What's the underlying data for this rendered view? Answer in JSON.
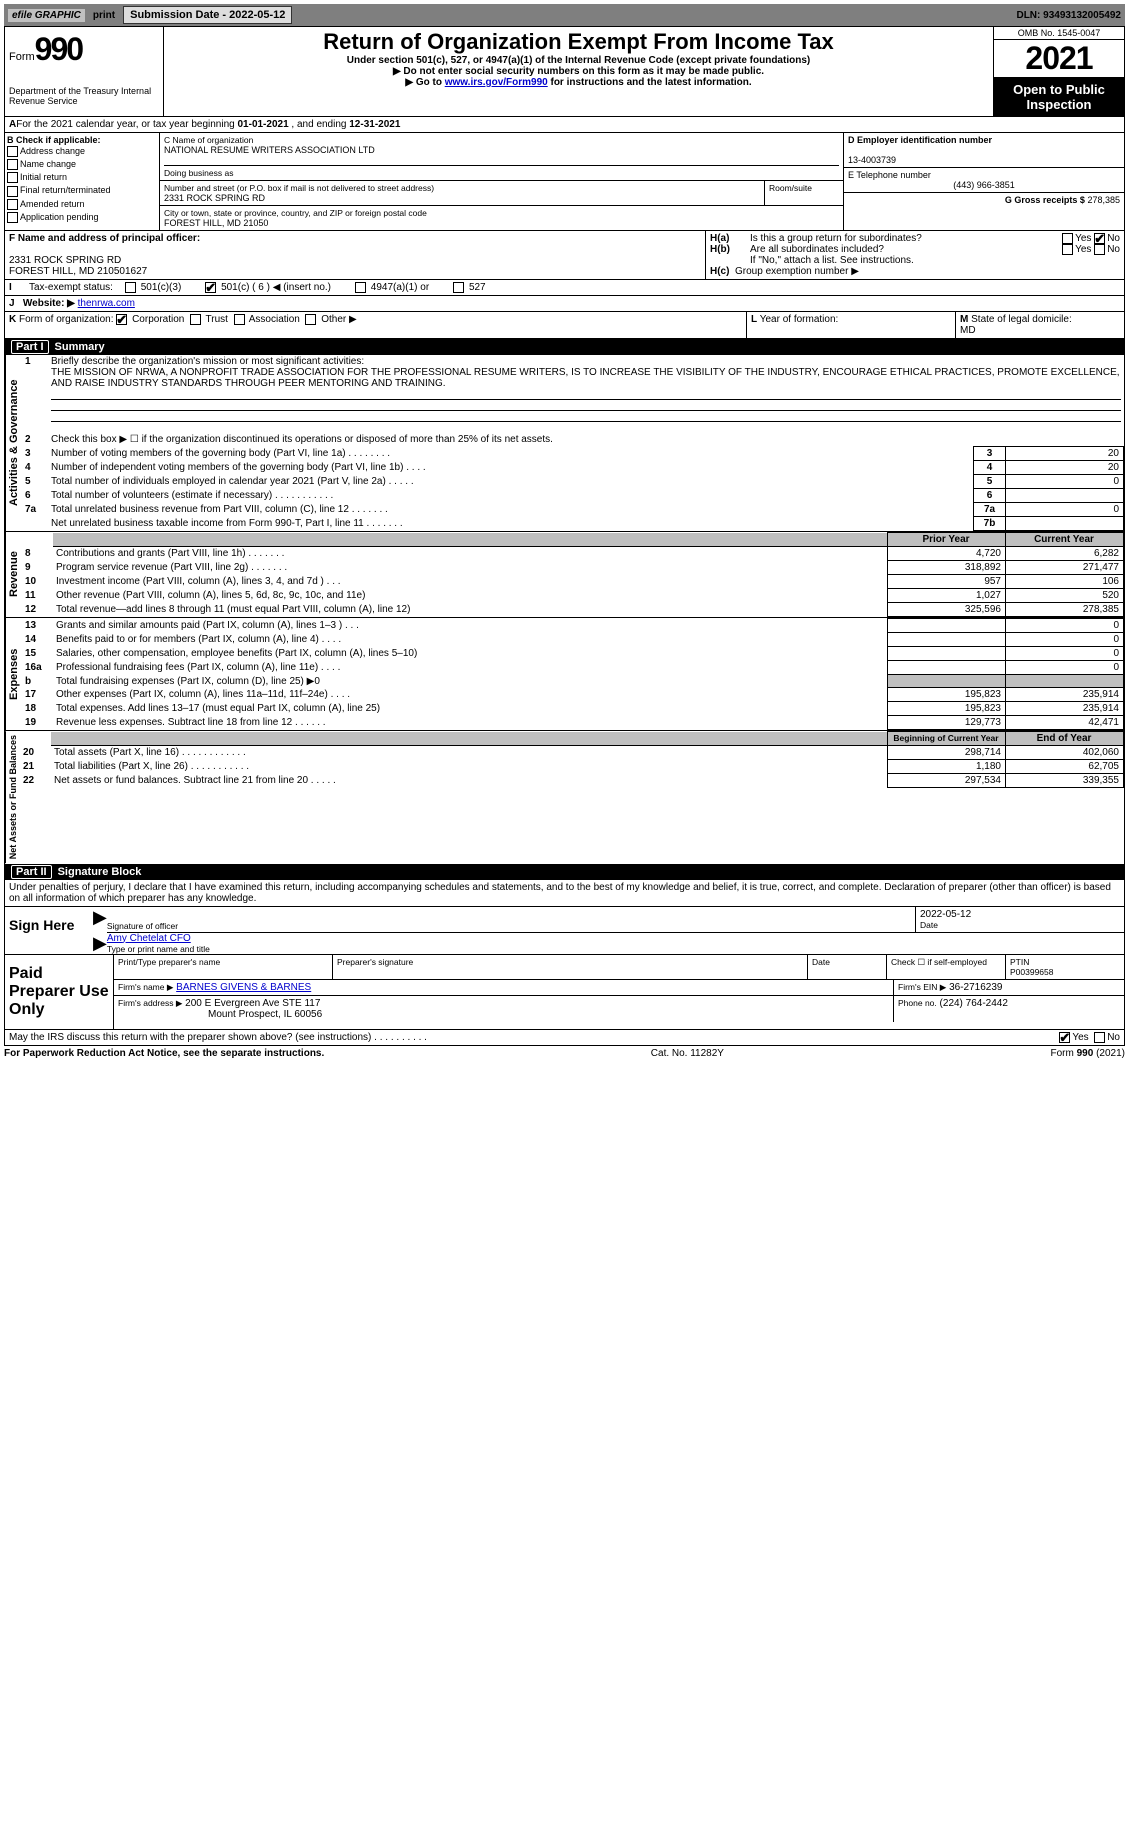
{
  "topbar": {
    "efile": "efile GRAPHIC",
    "print": "print",
    "submission": "Submission Date - 2022-05-12",
    "dln": "DLN: 93493132005492"
  },
  "header": {
    "form": "Form",
    "num": "990",
    "dept": "Department of the Treasury Internal Revenue Service",
    "title": "Return of Organization Exempt From Income Tax",
    "sub1": "Under section 501(c), 527, or 4947(a)(1) of the Internal Revenue Code (except private foundations)",
    "sub2": "▶ Do not enter social security numbers on this form as it may be made public.",
    "sub3_pre": "▶ Go to ",
    "sub3_link": "www.irs.gov/Form990",
    "sub3_post": " for instructions and the latest information.",
    "omb": "OMB No. 1545-0047",
    "year": "2021",
    "open": "Open to Public Inspection"
  },
  "a_line": {
    "pre": "For the 2021 calendar year, or tax year beginning ",
    "begin": "01-01-2021",
    "mid": " , and ending ",
    "end": "12-31-2021"
  },
  "b_check": {
    "header": "B Check if applicable:",
    "items": [
      "Address change",
      "Name change",
      "Initial return",
      "Final return/terminated",
      "Amended return",
      "Application pending"
    ]
  },
  "c": {
    "label_name": "C Name of organization",
    "name": "NATIONAL RESUME WRITERS ASSOCIATION LTD",
    "dba_label": "Doing business as",
    "street_label": "Number and street (or P.O. box if mail is not delivered to street address)",
    "room_label": "Room/suite",
    "street": "2331 ROCK SPRING RD",
    "city_label": "City or town, state or province, country, and ZIP or foreign postal code",
    "city": "FOREST HILL, MD  21050"
  },
  "d": {
    "label": "D Employer identification number",
    "val": "13-4003739"
  },
  "e": {
    "label": "E Telephone number",
    "val": "(443) 966-3851"
  },
  "g": {
    "label": "G Gross receipts $",
    "val": "278,385"
  },
  "f": {
    "label": "F  Name and address of principal officer:",
    "addr1": "2331 ROCK SPRING RD",
    "addr2": "FOREST HILL, MD  210501627"
  },
  "h": {
    "a_q": "Is this a group return for subordinates?",
    "b_q": "Are all subordinates included?",
    "note": "If \"No,\" attach a list. See instructions.",
    "c_label": "Group exemption number ▶",
    "yes": "Yes",
    "no": "No"
  },
  "i": {
    "label": "Tax-exempt status:",
    "c3": "501(c)(3)",
    "c": "501(c) ( 6 ) ◀ (insert no.)",
    "a1": "4947(a)(1) or",
    "s527": "527"
  },
  "j": {
    "label": "Website: ▶",
    "val": "thenrwa.com"
  },
  "k": {
    "label": "Form of organization:",
    "corp": "Corporation",
    "trust": "Trust",
    "assoc": "Association",
    "other": "Other ▶"
  },
  "l": {
    "label": "Year of formation:"
  },
  "m": {
    "label": "State of legal domicile:",
    "val": "MD"
  },
  "part1": {
    "header_num": "Part I",
    "header": "Summary",
    "q1_label": "Briefly describe the organization's mission or most significant activities:",
    "q1": "THE MISSION OF NRWA, A NONPROFIT TRADE ASSOCIATION FOR THE PROFESSIONAL RESUME WRITERS, IS TO INCREASE THE VISIBILITY OF THE INDUSTRY, ENCOURAGE ETHICAL PRACTICES, PROMOTE EXCELLENCE, AND RAISE INDUSTRY STANDARDS THROUGH PEER MENTORING AND TRAINING.",
    "q2": "Check this box ▶ ☐ if the organization discontinued its operations or disposed of more than 25% of its net assets.",
    "rows_gov": [
      {
        "n": "3",
        "t": "Number of voting members of the governing body (Part VI, line 1a)   .    .    .    .    .    .    .    .",
        "k": "3",
        "v": "20"
      },
      {
        "n": "4",
        "t": "Number of independent voting members of the governing body (Part VI, line 1b)    .    .    .    .",
        "k": "4",
        "v": "20"
      },
      {
        "n": "5",
        "t": "Total number of individuals employed in calendar year 2021 (Part V, line 2a)   .    .    .    .    .",
        "k": "5",
        "v": "0"
      },
      {
        "n": "6",
        "t": "Total number of volunteers (estimate if necessary)    .    .    .    .    .    .    .    .    .    .    .",
        "k": "6",
        "v": ""
      },
      {
        "n": "7a",
        "t": "Total unrelated business revenue from Part VIII, column (C), line 12    .    .    .    .    .    .    .",
        "k": "7a",
        "v": "0"
      },
      {
        "n": "",
        "t": "Net unrelated business taxable income from Form 990-T, Part I, line 11   .    .    .    .    .    .    .",
        "k": "7b",
        "v": ""
      }
    ],
    "col_prior": "Prior Year",
    "col_current": "Current Year",
    "rev": [
      {
        "n": "8",
        "t": "Contributions and grants (Part VIII, line 1h)   .    .    .    .    .    .    .",
        "p": "4,720",
        "c": "6,282"
      },
      {
        "n": "9",
        "t": "Program service revenue (Part VIII, line 2g)   .    .    .    .    .    .    .",
        "p": "318,892",
        "c": "271,477"
      },
      {
        "n": "10",
        "t": "Investment income (Part VIII, column (A), lines 3, 4, and 7d )   .    .    .",
        "p": "957",
        "c": "106"
      },
      {
        "n": "11",
        "t": "Other revenue (Part VIII, column (A), lines 5, 6d, 8c, 9c, 10c, and 11e)",
        "p": "1,027",
        "c": "520"
      },
      {
        "n": "12",
        "t": "Total revenue—add lines 8 through 11 (must equal Part VIII, column (A), line 12)",
        "p": "325,596",
        "c": "278,385"
      }
    ],
    "exp": [
      {
        "n": "13",
        "t": "Grants and similar amounts paid (Part IX, column (A), lines 1–3 )   .    .    .",
        "p": "",
        "c": "0"
      },
      {
        "n": "14",
        "t": "Benefits paid to or for members (Part IX, column (A), line 4)   .    .    .    .",
        "p": "",
        "c": "0"
      },
      {
        "n": "15",
        "t": "Salaries, other compensation, employee benefits (Part IX, column (A), lines 5–10)",
        "p": "",
        "c": "0"
      },
      {
        "n": "16a",
        "t": "Professional fundraising fees (Part IX, column (A), line 11e)   .    .    .    .",
        "p": "",
        "c": "0"
      },
      {
        "n": "b",
        "t": "Total fundraising expenses (Part IX, column (D), line 25) ▶0",
        "p": "GREY",
        "c": "GREY"
      },
      {
        "n": "17",
        "t": "Other expenses (Part IX, column (A), lines 11a–11d, 11f–24e)   .    .    .    .",
        "p": "195,823",
        "c": "235,914"
      },
      {
        "n": "18",
        "t": "Total expenses. Add lines 13–17 (must equal Part IX, column (A), line 25)",
        "p": "195,823",
        "c": "235,914"
      },
      {
        "n": "19",
        "t": "Revenue less expenses. Subtract line 18 from line 12  .    .    .    .    .    .",
        "p": "129,773",
        "c": "42,471"
      }
    ],
    "col_begin": "Beginning of Current Year",
    "col_end": "End of Year",
    "net": [
      {
        "n": "20",
        "t": "Total assets (Part X, line 16)   .    .    .    .    .    .    .    .    .    .    .    .",
        "p": "298,714",
        "c": "402,060"
      },
      {
        "n": "21",
        "t": "Total liabilities (Part X, line 26)   .    .    .    .    .    .    .    .    .    .    .",
        "p": "1,180",
        "c": "62,705"
      },
      {
        "n": "22",
        "t": "Net assets or fund balances. Subtract line 21 from line 20   .    .    .    .    .",
        "p": "297,534",
        "c": "339,355"
      }
    ],
    "vlab_gov": "Activities & Governance",
    "vlab_rev": "Revenue",
    "vlab_exp": "Expenses",
    "vlab_net": "Net Assets or Fund Balances"
  },
  "part2": {
    "header_num": "Part II",
    "header": "Signature Block",
    "decl": "Under penalties of perjury, I declare that I have examined this return, including accompanying schedules and statements, and to the best of my knowledge and belief, it is true, correct, and complete. Declaration of preparer (other than officer) is based on all information of which preparer has any knowledge.",
    "sign": "Sign Here",
    "sig_officer": "Signature of officer",
    "date": "Date",
    "sig_date": "2022-05-12",
    "officer_name": "Amy Chetelat CFO",
    "type_name": "Type or print name and title",
    "paid": "Paid Preparer Use Only",
    "prep_name_label": "Print/Type preparer's name",
    "prep_sig_label": "Preparer's signature",
    "date_label": "Date",
    "check_self": "Check ☐ if self-employed",
    "ptin_label": "PTIN",
    "ptin": "P00399658",
    "firm_name_label": "Firm's name    ▶",
    "firm_name": "BARNES GIVENS & BARNES",
    "firm_ein_label": "Firm's EIN ▶",
    "firm_ein": "36-2716239",
    "firm_addr_label": "Firm's address ▶",
    "firm_addr1": "200 E Evergreen Ave STE 117",
    "firm_addr2": "Mount Prospect, IL  60056",
    "phone_label": "Phone no.",
    "phone": "(224) 764-2442",
    "may": "May the IRS discuss this return with the preparer shown above? (see instructions)   .    .    .    .    .    .    .    .    .    .",
    "yes": "Yes",
    "no": "No"
  },
  "footer": {
    "pra": "For Paperwork Reduction Act Notice, see the separate instructions.",
    "cat": "Cat. No. 11282Y",
    "form": "Form 990 (2021)"
  }
}
